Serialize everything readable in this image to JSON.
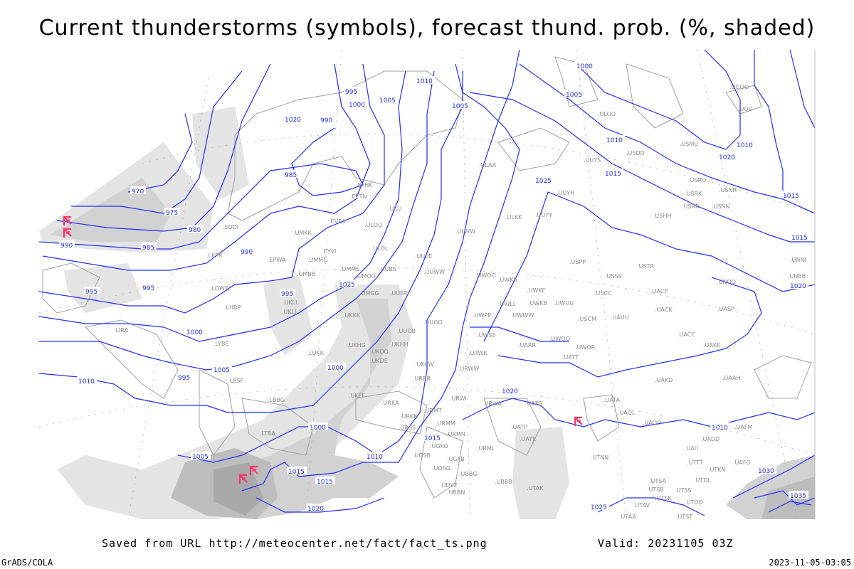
{
  "title": "Current thunderstorms (symbols), forecast thund. prob. (%, shaded)",
  "footer": {
    "saved_from": "Saved from URL http://meteocenter.net/fact/fact_ts.png",
    "valid": "Valid: 20231105 03Z",
    "credit": "GrADS/COLA",
    "timestamp": "2023-11-05-03:05"
  },
  "colors": {
    "isobar": "#1f2dff",
    "coastline": "#a0a0a0",
    "station": "#8a8a8a",
    "thunderstorm_symbol": "#ff3366",
    "probability_shading": [
      "#e4e4e4",
      "#d2d2d2",
      "#bdbdbd",
      "#a9a9a9"
    ]
  },
  "isobar_labels": [
    "970",
    "975",
    "980",
    "985",
    "990",
    "990",
    "995",
    "995",
    "995",
    "1000",
    "1000",
    "1005",
    "1010",
    "985",
    "990",
    "995",
    "1000",
    "1005",
    "1010",
    "1015",
    "1020",
    "1025",
    "1005",
    "1000",
    "1005",
    "1010",
    "1015",
    "1020",
    "1025",
    "995",
    "1000",
    "1005",
    "1010",
    "1015",
    "1020",
    "1020",
    "1010",
    "1010",
    "1015",
    "1015",
    "1015",
    "1020",
    "1025",
    "1030",
    "1035"
  ],
  "stations": [
    "EDDI",
    "LKPR",
    "EPWA",
    "UMKK",
    "EVRA",
    "ULOO",
    "ULOL",
    "UUEE",
    "UUWW",
    "UMMG",
    "EYVI",
    "UMMS",
    "UMOO",
    "UUBS",
    "UMBB",
    "EETN",
    "EFHK",
    "ULLI",
    "LOWW",
    "UMGG",
    "UUBP",
    "UKLL",
    "UKLI",
    "LHBP",
    "UKKK",
    "UUOO",
    "UUOB",
    "LIRA",
    "LYBE",
    "UKHG",
    "UKHH",
    "UKOO",
    "UKDE",
    "LUKK",
    "UKCW",
    "URRR",
    "LBSF",
    "LBBG",
    "UKFF",
    "URKA",
    "URKK",
    "LTBA",
    "URMT",
    "URMM",
    "URMN",
    "URSS",
    "UGKO",
    "UGSB",
    "UGTB",
    "UDSG",
    "UBBG",
    "UDYZ",
    "UBBN",
    "URML",
    "UATP",
    "UATE",
    "UBBB",
    "UTAK",
    "UTNN",
    "ULAA",
    "ULOO",
    "USDD",
    "USMU",
    "UOOO",
    "UOII",
    "UUYS",
    "USRO",
    "USNR",
    "USRK",
    "USRR",
    "USNN",
    "USHH",
    "UUYH",
    "ULKK",
    "UUYY",
    "ULWW",
    "USPP",
    "USTR",
    "USSS",
    "UNOO",
    "UNNI",
    "UNBB",
    "UWOO",
    "UWKS",
    "UWKE",
    "UWKB",
    "UWUU",
    "UWLL",
    "UWPP",
    "UWWW",
    "USCC",
    "UACP",
    "UACK",
    "UASP",
    "USCM",
    "UAUU",
    "UACC",
    "UAKK",
    "UWSS",
    "UWOO",
    "UWOR",
    "UARR",
    "UATT",
    "URWK",
    "URWW",
    "UAKD",
    "UAAH",
    "URWI",
    "URWA",
    "UATG",
    "UATA",
    "UAOL",
    "UAOO",
    "UAFM",
    "UADD",
    "UAII",
    "UTTT",
    "UTKN",
    "UAFO",
    "UTDL",
    "UTSA",
    "UTSS",
    "UTSB",
    "UTSK",
    "UTAV",
    "UTOD",
    "UTST",
    "UTAA"
  ],
  "thunderstorm_symbols": [
    "thunderstorm",
    "thunderstorm",
    "thunderstorm",
    "thunderstorm",
    "thunderstorm"
  ]
}
